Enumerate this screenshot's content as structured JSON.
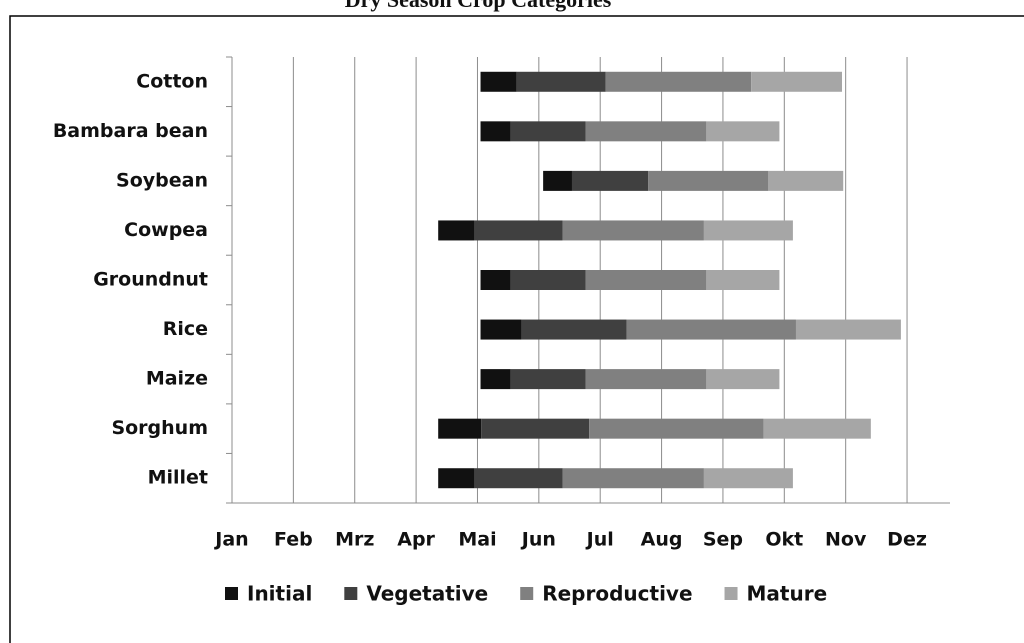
{
  "chart_data": {
    "type": "bar",
    "orientation": "horizontal",
    "stacked": true,
    "title": "Dry Season Crop Categories",
    "categories": [
      "Cotton",
      "Bambara bean",
      "Soybean",
      "Cowpea",
      "Groundnut",
      "Rice",
      "Maize",
      "Sorghum",
      "Millet"
    ],
    "start": [
      4.05,
      4.05,
      5.07,
      3.36,
      4.05,
      4.05,
      4.05,
      3.36,
      3.36
    ],
    "series": [
      {
        "name": "Initial",
        "color": "#111111",
        "values": [
          0.59,
          0.49,
          0.47,
          0.59,
          0.49,
          0.67,
          0.49,
          0.7,
          0.59
        ]
      },
      {
        "name": "Vegetative",
        "color": "#404040",
        "values": [
          1.45,
          1.22,
          1.24,
          1.44,
          1.22,
          1.71,
          1.22,
          1.76,
          1.44
        ]
      },
      {
        "name": "Reproductive",
        "color": "#808080",
        "values": [
          2.37,
          1.97,
          1.96,
          2.3,
          1.97,
          2.76,
          1.97,
          2.84,
          2.3
        ]
      },
      {
        "name": "Mature",
        "color": "#a6a6a6",
        "values": [
          1.48,
          1.19,
          1.22,
          1.45,
          1.19,
          1.71,
          1.19,
          1.75,
          1.45
        ]
      }
    ],
    "xlim": [
      0,
      11.7
    ],
    "xticks": [
      {
        "value": 0,
        "label": "Jan"
      },
      {
        "value": 1,
        "label": "Feb"
      },
      {
        "value": 2,
        "label": "Mrz"
      },
      {
        "value": 3,
        "label": "Apr"
      },
      {
        "value": 4,
        "label": "Mai"
      },
      {
        "value": 5,
        "label": "Jun"
      },
      {
        "value": 6,
        "label": "Jul"
      },
      {
        "value": 7,
        "label": "Aug"
      },
      {
        "value": 8,
        "label": "Sep"
      },
      {
        "value": 9,
        "label": "Okt"
      },
      {
        "value": 10,
        "label": "Nov"
      },
      {
        "value": 11,
        "label": "Dez"
      }
    ],
    "grid": true,
    "legend": "bottom"
  }
}
